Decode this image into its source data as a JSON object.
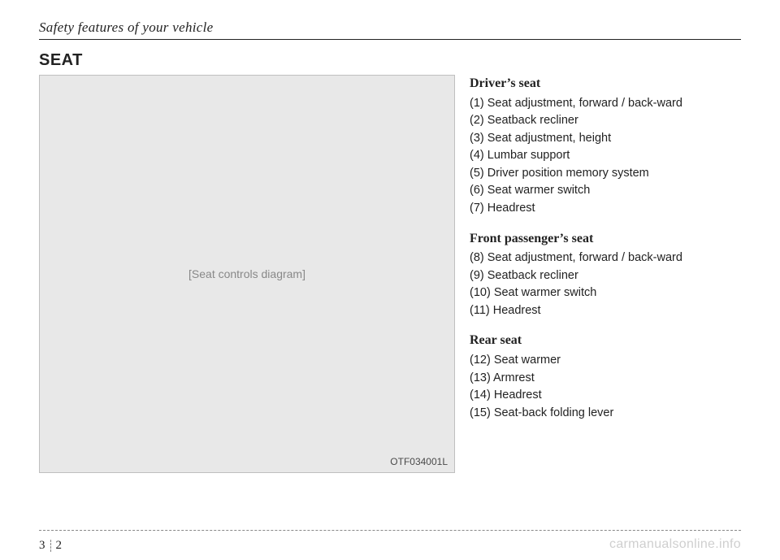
{
  "header": "Safety features of your vehicle",
  "section_title": "SEAT",
  "figure": {
    "code": "OTF034001L",
    "placeholder": "[Seat controls diagram]"
  },
  "groups": [
    {
      "title": "Driver’s seat",
      "items": [
        "(1) Seat adjustment, forward / back-ward",
        "(2) Seatback recliner",
        "(3) Seat adjustment, height",
        "(4) Lumbar support",
        "(5) Driver position memory system",
        "(6) Seat warmer switch",
        "(7) Headrest"
      ]
    },
    {
      "title": "Front passenger’s seat",
      "items": [
        "(8) Seat adjustment, forward / back-ward",
        "(9) Seatback recliner",
        "(10) Seat warmer switch",
        "(11) Headrest"
      ]
    },
    {
      "title": "Rear seat",
      "items": [
        "(12) Seat warmer",
        "(13) Armrest",
        "(14) Headrest",
        "(15) Seat-back folding lever"
      ]
    }
  ],
  "page": {
    "section": "3",
    "number": "2"
  },
  "watermark": "carmanualsonline.info"
}
